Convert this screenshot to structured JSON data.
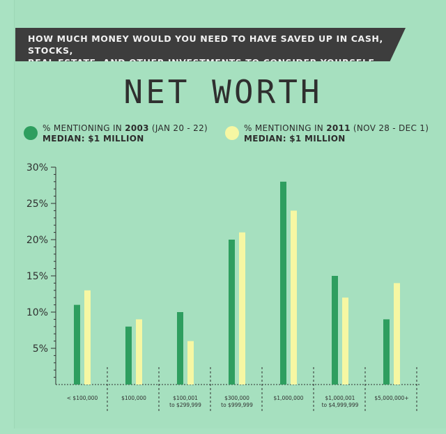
{
  "question": {
    "line1": "HOW MUCH MONEY WOULD YOU NEED TO HAVE SAVED UP IN CASH, STOCKS,",
    "line2": "REAL ESTATE, AND OTHER INVESTMENTS TO CONSIDER YOURSELF RICH?"
  },
  "title": "NET WORTH",
  "legend": [
    {
      "prefix": "% MENTIONING IN ",
      "year": "2003",
      "suffix": " (JAN 20 - 22)",
      "median": "MEDIAN: $1 MILLION",
      "color": "#2e9e5f"
    },
    {
      "prefix": "% MENTIONING IN ",
      "year": "2011",
      "suffix": " (NOV 28 - DEC 1)",
      "median": "MEDIAN: $1 MILLION",
      "color": "#f6f7a3"
    }
  ],
  "colors": {
    "background": "#a6e0bf",
    "bar_2003": "#2e9e5f",
    "bar_2011": "#f6f7a3",
    "banner": "#3d3d3d",
    "axis": "#2f2f2f"
  },
  "chart_data": {
    "type": "bar",
    "categories": [
      [
        "< $100,000"
      ],
      [
        "$100,000"
      ],
      [
        "$100,001",
        "to $299,999"
      ],
      [
        "$300,000",
        "to $999,999"
      ],
      [
        "$1,000,000"
      ],
      [
        "$1,000,001",
        "to $4,999,999"
      ],
      [
        "$5,000,000+"
      ]
    ],
    "series": [
      {
        "name": "% MENTIONING IN 2003 (JAN 20 - 22)",
        "values": [
          11,
          8,
          10,
          20,
          28,
          15,
          9
        ]
      },
      {
        "name": "% MENTIONING IN 2011 (NOV 28 - DEC 1)",
        "values": [
          13,
          9,
          6,
          21,
          24,
          12,
          14
        ]
      }
    ],
    "yticks": [
      "5%",
      "10%",
      "15%",
      "20%",
      "25%",
      "30%"
    ],
    "ytick_values": [
      5,
      10,
      15,
      20,
      25,
      30
    ],
    "ylim": [
      0,
      30
    ]
  }
}
